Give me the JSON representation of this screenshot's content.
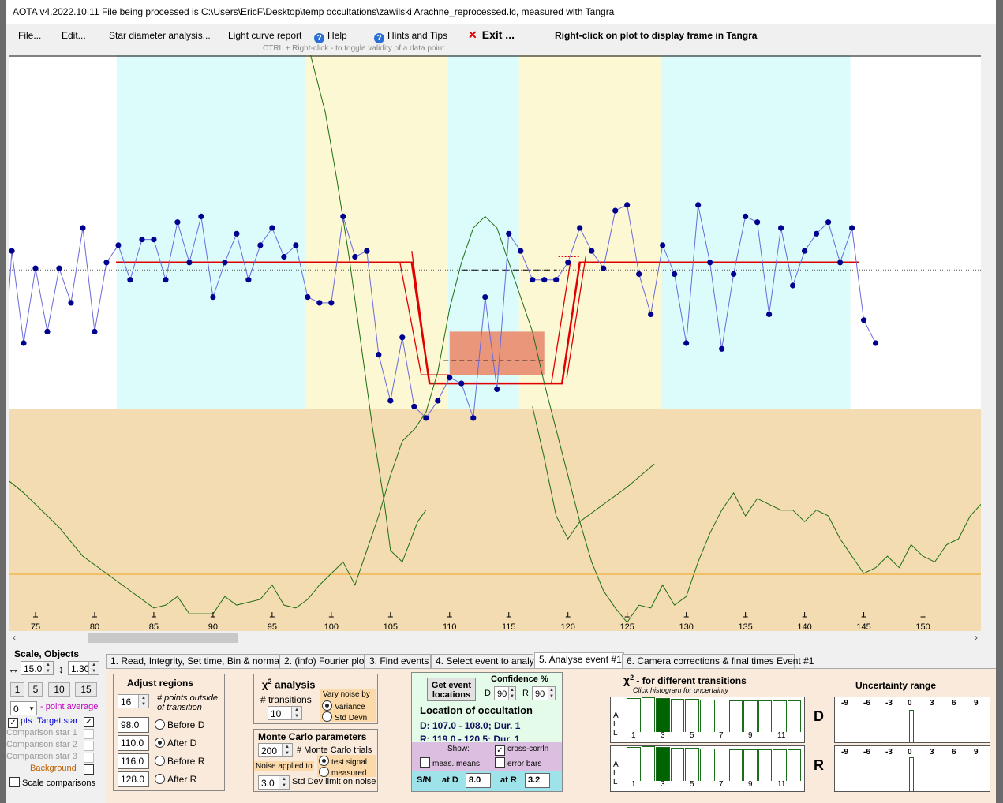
{
  "window": {
    "title": "AOTA v4.2022.10.11   File being processed is C:\\Users\\EricF\\Desktop\\temp occultations\\zawilski Arachne_reprocessed.lc, measured with Tangra"
  },
  "menu": {
    "file": "File...",
    "edit": "Edit...",
    "star_diameter": "Star diameter analysis...",
    "light_curve_report": "Light curve report",
    "help": "Help",
    "hints": "Hints and Tips",
    "exit": "Exit ...",
    "right_click_hint": "Right-click on plot to display frame in Tangra",
    "ctrl_hint": "CTRL + Right-click   -  to toggle validity of a data point"
  },
  "icons": {
    "help": "question-circle-icon",
    "hints": "question-circle-icon",
    "exit": "red-x-icon"
  },
  "colors": {
    "plot_bg": "#ffffff",
    "band_cyan": "#dcfcfc",
    "band_yellow": "#fcf8d4",
    "lower_panel": "#f3dcb1",
    "data_point": "#000090",
    "data_line": "#6a6adc",
    "fit_line": "#e00000",
    "chi_curve": "#1d6e12",
    "orange_line": "#f0a020",
    "tab_page_bg": "#f9eadc"
  },
  "plot": {
    "x_ticks": [
      "75",
      "80",
      "85",
      "90",
      "95",
      "100",
      "105",
      "110",
      "115",
      "120",
      "125",
      "130",
      "135",
      "140",
      "145",
      "150"
    ],
    "x_tick_values": [
      75,
      80,
      85,
      90,
      95,
      100,
      105,
      110,
      115,
      120,
      125,
      130,
      135,
      140,
      145,
      150
    ],
    "x_range": [
      72.8,
      154.9
    ],
    "data_x_start": 72,
    "y_values": [
      0.36,
      0.66,
      0.5,
      0.63,
      0.52,
      0.63,
      0.57,
      0.7,
      0.52,
      0.64,
      0.67,
      0.61,
      0.68,
      0.68,
      0.61,
      0.71,
      0.64,
      0.72,
      0.58,
      0.64,
      0.69,
      0.61,
      0.67,
      0.7,
      0.65,
      0.67,
      0.58,
      0.57,
      0.57,
      0.72,
      0.65,
      0.66,
      0.48,
      0.4,
      0.51,
      0.39,
      0.37,
      0.4,
      0.44,
      0.43,
      0.37,
      0.58,
      0.42,
      0.69,
      0.66,
      0.61,
      0.61,
      0.61,
      0.64,
      0.7,
      0.66,
      0.63,
      0.73,
      0.74,
      0.62,
      0.55,
      0.67,
      0.62,
      0.5,
      0.74,
      0.64,
      0.49,
      0.62,
      0.72,
      0.71,
      0.55,
      0.7,
      0.6,
      0.66,
      0.69,
      0.71,
      0.64,
      0.7,
      0.54,
      0.5
    ],
    "dotted_baseline": 0.627,
    "model_top": 0.64,
    "model_bottom": 0.43,
    "dashed_level": 0.627,
    "event_d": 107.5,
    "event_r": 119.5
  },
  "chart_data": {
    "type": "scatter",
    "x_ticks": [
      75,
      80,
      85,
      90,
      95,
      100,
      105,
      110,
      115,
      120,
      125,
      130,
      135,
      140,
      145,
      150
    ],
    "event_d_range": [
      107.0,
      108.0
    ],
    "event_r_range": [
      119.0,
      120.5
    ]
  },
  "left_panel": {
    "scale_objects": "Scale,  Objects",
    "h_scale": "15.0",
    "v_scale": "1.30",
    "buttons": [
      "1",
      "5",
      "10",
      "15"
    ],
    "point_average_value": "0",
    "point_average_label": "- point average",
    "pts_label": "pts",
    "target_star": "Target star",
    "comp1": "Comparison star 1",
    "comp2": "Comparison star 2",
    "comp3": "Comparison star 3",
    "background": "Background",
    "scale_comparisons": "Scale comparisons"
  },
  "tabs": [
    "1.  Read, Integrity, Set time, Bin & normalise",
    "2. (info)  Fourier plot",
    "3. Find events",
    "4. Select event to analyse",
    "5. Analyse event #1",
    "6. Camera corrections & final times Event #1"
  ],
  "adjust": {
    "title": "Adjust regions",
    "points_value": "16",
    "points_label": "# points outside of transition",
    "before_d": "98.0",
    "after_d": "110.0",
    "before_r": "116.0",
    "after_r": "128.0",
    "before_d_label": "Before D",
    "after_d_label": "After D",
    "before_r_label": "Before R",
    "after_r_label": "After R"
  },
  "chi2": {
    "title": "analysis",
    "symbol": "χ",
    "transitions_label": "# transitions",
    "transitions_value": "10",
    "vary_noise": "Vary noise by",
    "variance": "Variance",
    "std_devn": "Std Devn"
  },
  "monte_carlo": {
    "title": "Monte Carlo parameters",
    "trials_value": "200",
    "trials_label": "# Monte Carlo trials",
    "noise_applied": "Noise applied to",
    "test_signal": "test signal",
    "measured": "measured",
    "std_value": "3.0",
    "std_label": "Std Dev limit on noise"
  },
  "event": {
    "get_locations": "Get event locations",
    "confidence": "Confidence %",
    "d_label": "D",
    "d_conf": "90",
    "r_label": "R",
    "r_conf": "90",
    "location_title": "Location of occultation",
    "d_line": "D: 107.0 - 108.0;  Dur. 1",
    "r_line": "R: 119.0 - 120.5;  Dur. 1",
    "show": "Show:",
    "cross_corrln": "cross-corrln",
    "meas_means": "meas. means",
    "error_bars": "error bars",
    "sn": "S/N",
    "at_d": "at D",
    "at_d_value": "8.0",
    "at_r": "at R",
    "at_r_value": "3.2"
  },
  "chi_transitions": {
    "title": "- for different transitions",
    "subtitle": "Click histogram for uncertainty",
    "all_label": "ALL",
    "d_label": "D",
    "r_label": "R",
    "x_labels": [
      "1",
      "3",
      "5",
      "7",
      "9",
      "11"
    ],
    "d_bars": [
      0.98,
      1.0,
      0.97,
      0.96,
      0.95,
      0.94,
      0.93,
      0.92,
      0.92,
      0.91,
      0.91,
      0.9
    ],
    "r_bars": [
      0.98,
      1.0,
      0.97,
      0.96,
      0.95,
      0.94,
      0.93,
      0.92,
      0.92,
      0.91,
      0.91,
      0.9
    ],
    "d_selected": 2,
    "r_selected": 2
  },
  "uncertainty": {
    "title": "Uncertainty range",
    "labels": [
      "-9",
      "-6",
      "-3",
      "0",
      "3",
      "6",
      "9"
    ],
    "d_bar_offset": 0,
    "d_bar_height": 0.92,
    "r_bar_offset": 0,
    "r_bar_height": 0.96
  }
}
